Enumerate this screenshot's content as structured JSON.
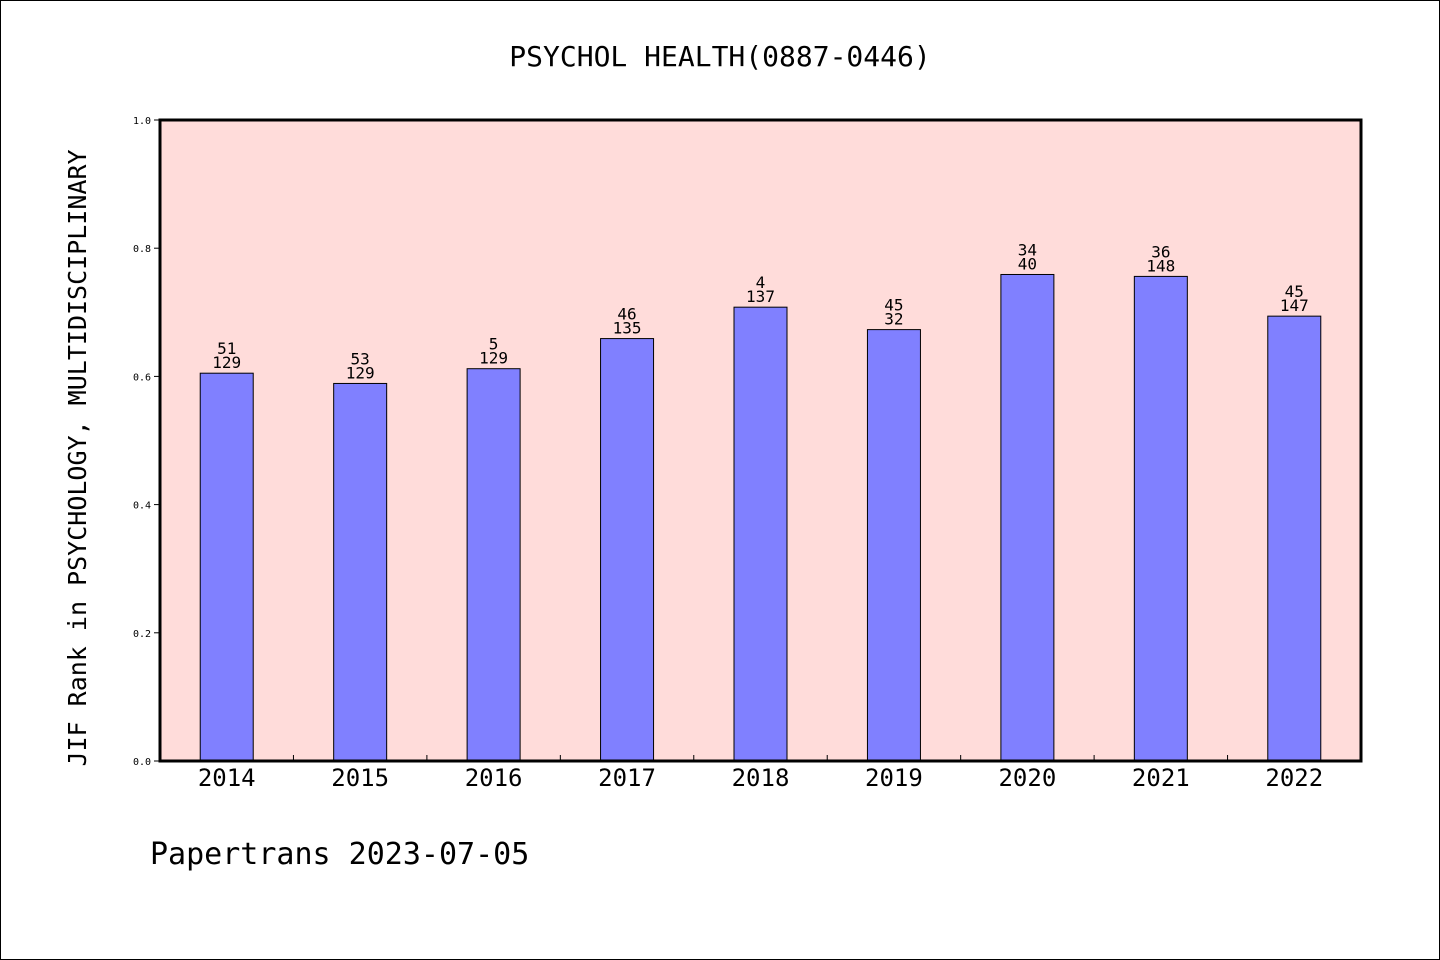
{
  "chart_data": {
    "type": "bar",
    "title": "PSYCHOL HEALTH(0887-0446)",
    "xlabel": "",
    "ylabel": "JIF Rank in PSYCHOLOGY, MULTIDISCIPLINARY",
    "ylim": [
      0,
      1.0
    ],
    "yticks": [
      "0.0",
      "0.2",
      "0.4",
      "0.6",
      "0.8",
      "1.0"
    ],
    "categories": [
      "2014",
      "2015",
      "2016",
      "2017",
      "2018",
      "2019",
      "2020",
      "2021",
      "2022"
    ],
    "values": [
      0.605,
      0.589,
      0.612,
      0.659,
      0.708,
      0.673,
      0.759,
      0.756,
      0.694
    ],
    "labels": [
      [
        "51",
        "129"
      ],
      [
        "53",
        "129"
      ],
      [
        "5",
        "129"
      ],
      [
        "46",
        "135"
      ],
      [
        "4",
        "137"
      ],
      [
        "45",
        "32"
      ],
      [
        "34",
        "40"
      ],
      [
        "36",
        "148"
      ],
      [
        "45",
        "147"
      ]
    ],
    "grid": false,
    "colors": {
      "bar": "#8080ff",
      "plot_background": "#ffdcda",
      "bar_edge": "#000000"
    }
  },
  "footer": "Papertrans 2023-07-05"
}
